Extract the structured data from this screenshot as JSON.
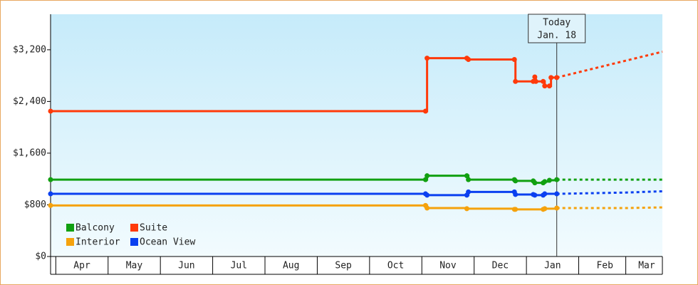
{
  "chart_data": {
    "type": "step",
    "xlim": [
      -0.1,
      11.6
    ],
    "xticks": [
      {
        "value": 0.5,
        "label": "Apr"
      },
      {
        "value": 1.5,
        "label": "May"
      },
      {
        "value": 2.5,
        "label": "Jun"
      },
      {
        "value": 3.5,
        "label": "Jul"
      },
      {
        "value": 4.5,
        "label": "Aug"
      },
      {
        "value": 5.5,
        "label": "Sep"
      },
      {
        "value": 6.5,
        "label": "Oct"
      },
      {
        "value": 7.5,
        "label": "Nov"
      },
      {
        "value": 8.5,
        "label": "Dec"
      },
      {
        "value": 9.5,
        "label": "Jan"
      },
      {
        "value": 10.5,
        "label": "Feb"
      },
      {
        "value": 11.3,
        "label": "Mar"
      }
    ],
    "ylim": [
      0,
      3750
    ],
    "yticks": [
      {
        "value": 0,
        "label": "$0"
      },
      {
        "value": 800,
        "label": "$800"
      },
      {
        "value": 1600,
        "label": "$1,600"
      },
      {
        "value": 2400,
        "label": "$2,400"
      },
      {
        "value": 3200,
        "label": "$3,200"
      }
    ],
    "legend": "bottom-left",
    "annotation": {
      "x": 9.58,
      "lines": [
        "Today",
        "Jan. 18"
      ]
    },
    "series": [
      {
        "name": "Balcony",
        "color": "#11a011",
        "x": [
          -0.1,
          7.07,
          7.1,
          7.86,
          7.89,
          8.77,
          8.79,
          9.13,
          9.16,
          9.32,
          9.35,
          9.44,
          9.58
        ],
        "values": [
          1190,
          1190,
          1250,
          1250,
          1190,
          1190,
          1170,
          1170,
          1140,
          1140,
          1160,
          1180,
          1190
        ],
        "projection": {
          "x": [
            9.58,
            11.6
          ],
          "values": [
            1190,
            1190
          ]
        }
      },
      {
        "name": "Suite",
        "color": "#ff3a0a",
        "x": [
          -0.1,
          7.07,
          7.1,
          7.86,
          7.89,
          8.77,
          8.79,
          9.13,
          9.16,
          9.18,
          9.32,
          9.35,
          9.44,
          9.47,
          9.58
        ],
        "values": [
          2250,
          2250,
          3070,
          3070,
          3050,
          3050,
          2710,
          2710,
          2780,
          2710,
          2710,
          2640,
          2640,
          2770,
          2770
        ],
        "projection": {
          "x": [
            9.58,
            11.6
          ],
          "values": [
            2770,
            3170
          ]
        }
      },
      {
        "name": "Interior",
        "color": "#f5a20c",
        "x": [
          -0.1,
          7.07,
          7.1,
          7.86,
          8.77,
          8.79,
          9.32,
          9.35,
          9.58
        ],
        "values": [
          790,
          790,
          750,
          740,
          730,
          730,
          730,
          740,
          750
        ],
        "projection": {
          "x": [
            9.58,
            10.9,
            11.6
          ],
          "values": [
            750,
            750,
            760
          ]
        }
      },
      {
        "name": "Ocean View",
        "color": "#0a40f0",
        "x": [
          -0.1,
          7.07,
          7.1,
          7.86,
          7.89,
          8.77,
          8.79,
          9.13,
          9.16,
          9.32,
          9.35,
          9.58
        ],
        "values": [
          970,
          970,
          950,
          950,
          1000,
          1000,
          960,
          960,
          950,
          950,
          970,
          970
        ],
        "projection": {
          "x": [
            9.58,
            10.9,
            11.6
          ],
          "values": [
            970,
            990,
            1010
          ]
        }
      }
    ]
  }
}
